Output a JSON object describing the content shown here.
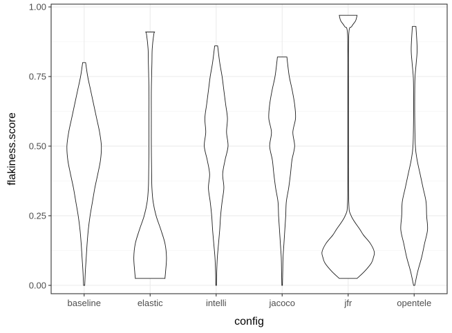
{
  "chart_data": {
    "type": "violin",
    "xlabel": "config",
    "ylabel": "flakiness.score",
    "ylim": [
      -0.03,
      1.01
    ],
    "y_ticks": [
      0.0,
      0.25,
      0.5,
      0.75,
      1.0
    ],
    "y_tick_labels": [
      "0.00",
      "0.25",
      "0.50",
      "0.75",
      "1.00"
    ],
    "grid": true,
    "categories": [
      "baseline",
      "elastic",
      "intelli",
      "jacoco",
      "jfr",
      "opentele"
    ],
    "violins": [
      {
        "category": "baseline",
        "y": [
          0.0,
          0.05,
          0.1,
          0.15,
          0.2,
          0.25,
          0.3,
          0.35,
          0.4,
          0.45,
          0.5,
          0.55,
          0.6,
          0.65,
          0.7,
          0.75,
          0.8
        ],
        "half_width": [
          0.02,
          0.04,
          0.07,
          0.1,
          0.14,
          0.2,
          0.28,
          0.36,
          0.46,
          0.55,
          0.58,
          0.52,
          0.42,
          0.32,
          0.22,
          0.12,
          0.05
        ]
      },
      {
        "category": "elastic",
        "y": [
          0.025,
          0.027,
          0.05,
          0.1,
          0.15,
          0.2,
          0.25,
          0.3,
          0.35,
          0.4,
          0.5,
          0.6,
          0.7,
          0.8,
          0.85,
          0.9,
          0.91
        ],
        "half_width": [
          0.5,
          0.5,
          0.52,
          0.55,
          0.5,
          0.36,
          0.2,
          0.1,
          0.06,
          0.05,
          0.04,
          0.04,
          0.04,
          0.06,
          0.07,
          0.12,
          0.15
        ]
      },
      {
        "category": "intelli",
        "y": [
          0.0,
          0.05,
          0.1,
          0.15,
          0.2,
          0.25,
          0.3,
          0.35,
          0.4,
          0.45,
          0.5,
          0.55,
          0.6,
          0.65,
          0.7,
          0.75,
          0.8,
          0.86
        ],
        "half_width": [
          0.01,
          0.02,
          0.04,
          0.08,
          0.12,
          0.15,
          0.2,
          0.26,
          0.22,
          0.3,
          0.4,
          0.35,
          0.38,
          0.32,
          0.26,
          0.2,
          0.12,
          0.05
        ]
      },
      {
        "category": "jacoco",
        "y": [
          0.0,
          0.05,
          0.1,
          0.15,
          0.2,
          0.25,
          0.3,
          0.35,
          0.4,
          0.45,
          0.5,
          0.55,
          0.6,
          0.65,
          0.7,
          0.75,
          0.8,
          0.82
        ],
        "half_width": [
          0.01,
          0.02,
          0.03,
          0.06,
          0.09,
          0.12,
          0.14,
          0.22,
          0.28,
          0.33,
          0.42,
          0.36,
          0.45,
          0.42,
          0.34,
          0.24,
          0.18,
          0.16
        ]
      },
      {
        "category": "jfr",
        "y": [
          0.025,
          0.05,
          0.08,
          0.1,
          0.12,
          0.15,
          0.18,
          0.2,
          0.25,
          0.3,
          0.5,
          0.7,
          0.9,
          0.93,
          0.95,
          0.97
        ],
        "half_width": [
          0.3,
          0.55,
          0.78,
          0.85,
          0.88,
          0.75,
          0.52,
          0.4,
          0.1,
          0.02,
          0.01,
          0.01,
          0.02,
          0.12,
          0.25,
          0.3
        ]
      },
      {
        "category": "opentele",
        "y": [
          0.0,
          0.05,
          0.1,
          0.15,
          0.2,
          0.25,
          0.3,
          0.35,
          0.4,
          0.45,
          0.5,
          0.6,
          0.7,
          0.75,
          0.8,
          0.85,
          0.93
        ],
        "half_width": [
          0.02,
          0.12,
          0.25,
          0.35,
          0.45,
          0.42,
          0.4,
          0.3,
          0.2,
          0.1,
          0.04,
          0.02,
          0.02,
          0.03,
          0.07,
          0.1,
          0.06
        ]
      }
    ]
  }
}
